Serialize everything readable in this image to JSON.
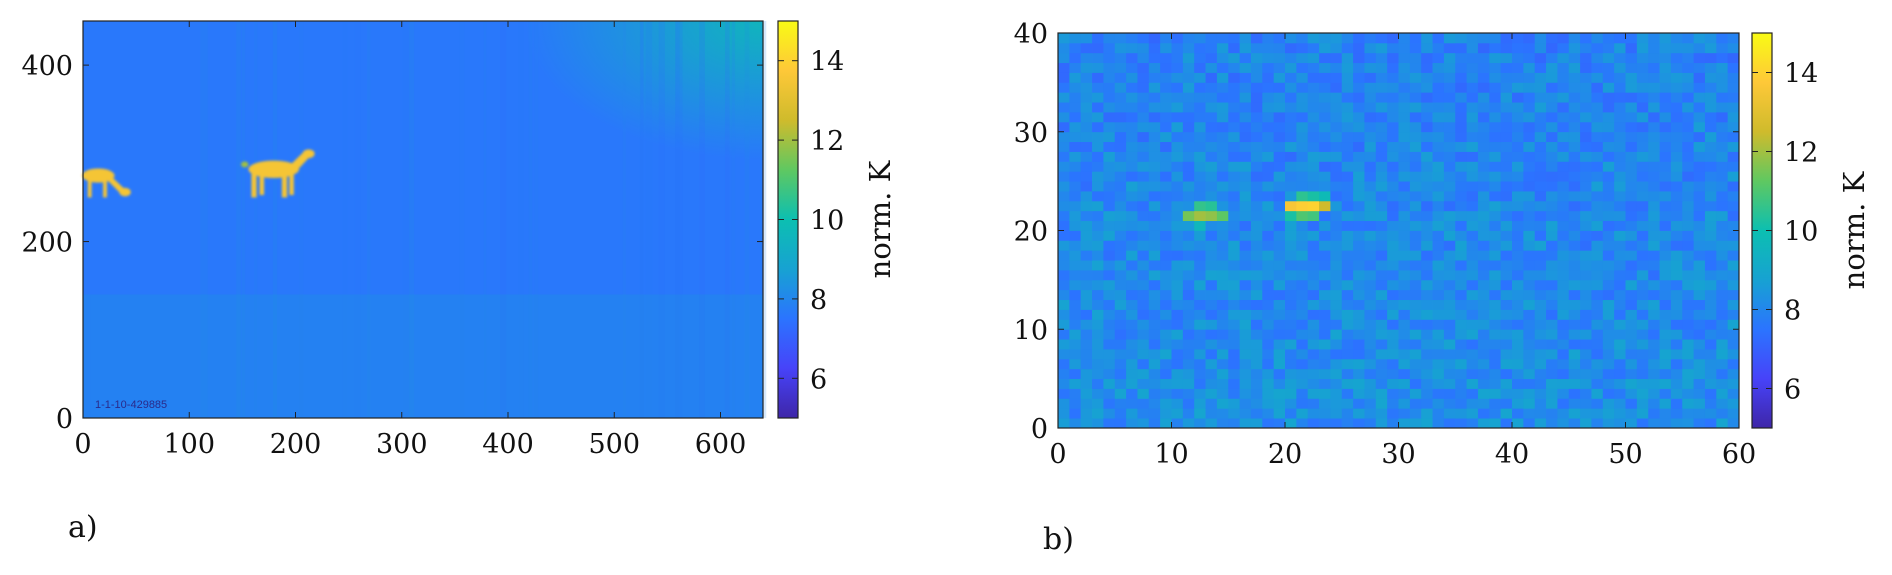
{
  "panels": {
    "a": {
      "label": "a)"
    },
    "b": {
      "label": "b)"
    }
  },
  "colorbar": {
    "label": "norm. K",
    "ticks": [
      6,
      8,
      10,
      12,
      14
    ],
    "range": [
      5,
      15
    ]
  },
  "colors": {
    "colormap": [
      "#3e26a8",
      "#4743f9",
      "#2b74ff",
      "#17a2d2",
      "#0cbfb1",
      "#5fc861",
      "#cfbb2c",
      "#fec838",
      "#f9fb15"
    ],
    "background_level": 8.0
  },
  "chart_data": [
    {
      "type": "heatmap",
      "title": "",
      "xlabel": "",
      "ylabel": "",
      "xlim": [
        0,
        640
      ],
      "ylim": [
        0,
        450
      ],
      "xticks": [
        0,
        100,
        200,
        300,
        400,
        500,
        600
      ],
      "yticks": [
        0,
        200,
        400
      ],
      "zlabel": "norm. K",
      "zlim": [
        5,
        15
      ],
      "annotation": "1-1-10-429885",
      "objects": [
        {
          "name": "deer-left",
          "x_range": [
            0,
            45
          ],
          "y_range": [
            250,
            290
          ],
          "value": 13.5
        },
        {
          "name": "deer-right",
          "x_range": [
            148,
            218
          ],
          "y_range": [
            250,
            305
          ],
          "value": 13.5
        }
      ],
      "corner_hotspot": {
        "x": 640,
        "y": 450,
        "value": 10
      }
    },
    {
      "type": "heatmap",
      "title": "",
      "xlabel": "",
      "ylabel": "",
      "xlim": [
        0,
        60
      ],
      "ylim": [
        0,
        40
      ],
      "xticks": [
        0,
        10,
        20,
        30,
        40,
        50,
        60
      ],
      "yticks": [
        0,
        10,
        20,
        30,
        40
      ],
      "zlabel": "norm. K",
      "zlim": [
        5,
        15
      ],
      "grid_size": [
        60,
        40
      ],
      "background_mean": 8.0,
      "hot_cells": [
        {
          "x": 11,
          "y": 21,
          "value": 11.5
        },
        {
          "x": 12,
          "y": 21,
          "value": 12.0
        },
        {
          "x": 13,
          "y": 21,
          "value": 11.8
        },
        {
          "x": 14,
          "y": 21,
          "value": 11.2
        },
        {
          "x": 12,
          "y": 22,
          "value": 10.6
        },
        {
          "x": 13,
          "y": 22,
          "value": 10.4
        },
        {
          "x": 12,
          "y": 20,
          "value": 9.6
        },
        {
          "x": 20,
          "y": 22,
          "value": 13.6
        },
        {
          "x": 21,
          "y": 22,
          "value": 13.9
        },
        {
          "x": 22,
          "y": 22,
          "value": 14.0
        },
        {
          "x": 23,
          "y": 22,
          "value": 12.5
        },
        {
          "x": 21,
          "y": 21,
          "value": 11.0
        },
        {
          "x": 22,
          "y": 21,
          "value": 10.8
        },
        {
          "x": 20,
          "y": 21,
          "value": 10.2
        },
        {
          "x": 21,
          "y": 23,
          "value": 10.5
        },
        {
          "x": 22,
          "y": 23,
          "value": 10.2
        },
        {
          "x": 23,
          "y": 23,
          "value": 9.8
        }
      ]
    }
  ]
}
